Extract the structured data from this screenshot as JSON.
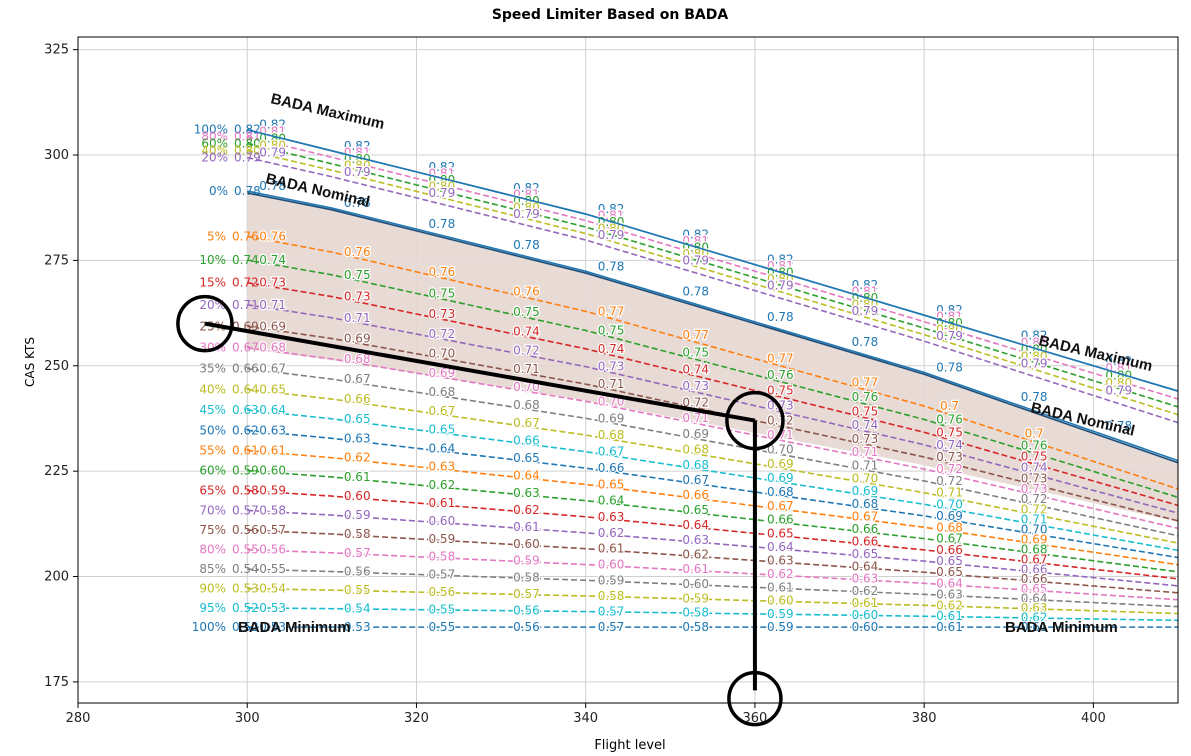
{
  "chart_data": {
    "type": "line",
    "title": "Speed Limiter Based on BADA",
    "xlabel": "Flight level",
    "ylabel": "CAS KTS",
    "xlim": [
      280,
      410
    ],
    "ylim": [
      170,
      328
    ],
    "xticks": [
      "280",
      "300",
      "320",
      "340",
      "360",
      "380",
      "400"
    ],
    "yticks": [
      "175",
      "200",
      "225",
      "250",
      "275",
      "300",
      "325"
    ],
    "xtick_values": [
      280,
      300,
      320,
      340,
      360,
      380,
      400
    ],
    "ytick_values": [
      175,
      200,
      225,
      250,
      275,
      300,
      325
    ],
    "grid": true,
    "x": [
      300,
      310,
      320,
      330,
      340,
      350,
      360,
      370,
      380,
      390,
      400,
      410
    ],
    "bada_maximum_cas": [
      306,
      301,
      296,
      291,
      286,
      280,
      274,
      268,
      262,
      256,
      250,
      244
    ],
    "bada_nominal_cas": [
      291,
      287,
      282,
      277,
      272,
      266,
      260,
      254,
      248,
      241,
      234,
      227
    ],
    "bada_minimum_cas": [
      188,
      188,
      188,
      188,
      188,
      188,
      188,
      188,
      188,
      188,
      188,
      188
    ],
    "series_upper": [
      {
        "name": "100%",
        "mach": "0.82",
        "marker_labels": [
          "0.82",
          "0.82",
          "0.82",
          "0.82",
          "0.82",
          "0.82",
          "0.82",
          "0.82",
          "0.82",
          "0.82",
          "0.82"
        ],
        "color": "#1f77b4",
        "dash": "solid"
      },
      {
        "name": "80%",
        "mach": "0.81",
        "marker_labels": [
          "0.81",
          "0.81",
          "0.81",
          "0.81",
          "0.81",
          "0.81",
          "0.81",
          "0.81",
          "0.81",
          "0.81",
          "0.81"
        ],
        "color": "#e377c2",
        "dash": "dashed"
      },
      {
        "name": "60%",
        "mach": "0.80",
        "marker_labels": [
          "0.80",
          "0.80",
          "0.80",
          "0.80",
          "0.80",
          "0.80",
          "0.80",
          "0.80",
          "0.80",
          "0.80",
          "0.80"
        ],
        "color": "#2ca02c",
        "dash": "dashed"
      },
      {
        "name": "40%",
        "mach": "0.80",
        "marker_labels": [
          "0.80",
          "0.80",
          "0.80",
          "0.80",
          "0.80",
          "0.80",
          "0.80",
          "0.80",
          "0.80",
          "0.80",
          "0.80"
        ],
        "color": "#bcbd22",
        "dash": "dashed"
      },
      {
        "name": "20%",
        "mach": "0.79",
        "marker_labels": [
          "0.79",
          "0.79",
          "0.79",
          "0.79",
          "0.79",
          "0.79",
          "0.79",
          "0.79",
          "0.79",
          "0.79",
          "0.79"
        ],
        "color": "#9467bd",
        "dash": "dashed"
      },
      {
        "name": "0%",
        "mach": "0.78",
        "marker_labels": [
          "0.78",
          "0.78",
          "0.78",
          "0.78",
          "0.78",
          "0.78",
          "0.78",
          "0.78",
          "0.78",
          "0.78",
          "0.78"
        ],
        "color": "#1f77b4",
        "dash": "solid"
      }
    ],
    "series_lower": [
      {
        "name": "5%",
        "mach": "0.76",
        "marker_labels": [
          "0.76",
          "0.76",
          "0.76",
          "0.76",
          "0.77",
          "0.77",
          "0.77",
          "0.77",
          "0.7",
          "0.7"
        ],
        "color": "#ff7f0e"
      },
      {
        "name": "10%",
        "mach": "0.74",
        "marker_labels": [
          "0.74",
          "0.75",
          "0.75",
          "0.75",
          "0.75",
          "0.75",
          "0.76",
          "0.76",
          "0.76",
          "0.76"
        ],
        "color": "#2ca02c"
      },
      {
        "name": "15%",
        "mach": "0.72",
        "marker_labels": [
          "0.73",
          "0.73",
          "0.73",
          "0.74",
          "0.74",
          "0.74",
          "0.75",
          "0.75",
          "0.75",
          "0.75"
        ],
        "color": "#d62728"
      },
      {
        "name": "20%",
        "mach": "0.71",
        "marker_labels": [
          "0.71",
          "0.71",
          "0.72",
          "0.72",
          "0.73",
          "0.73",
          "0.73",
          "0.74",
          "0.74",
          "0.74"
        ],
        "color": "#9467bd"
      },
      {
        "name": "25%",
        "mach": "0.69",
        "marker_labels": [
          "0.69",
          "0.69",
          "0.70",
          "0.71",
          "0.71",
          "0.72",
          "0.72",
          "0.73",
          "0.73",
          "0.73"
        ],
        "color": "#8c564b"
      },
      {
        "name": "30%",
        "mach": "0.67",
        "marker_labels": [
          "0.68",
          "0.68",
          "0.69",
          "0.70",
          "0.70",
          "0.71",
          "0.71",
          "0.71",
          "0.72",
          "0.73"
        ],
        "color": "#e377c2"
      },
      {
        "name": "35%",
        "mach": "0.66",
        "marker_labels": [
          "0.67",
          "0.67",
          "0.68",
          "0.68",
          "0.69",
          "0.69",
          "0.70",
          "0.71",
          "0.72",
          "0.72"
        ],
        "color": "#7f7f7f"
      },
      {
        "name": "40%",
        "mach": "0.64",
        "marker_labels": [
          "0.65",
          "0.66",
          "0.67",
          "0.67",
          "0.68",
          "0.68",
          "0.69",
          "0.70",
          "0.71",
          "0.72"
        ],
        "color": "#bcbd22"
      },
      {
        "name": "45%",
        "mach": "0.63",
        "marker_labels": [
          "0.64",
          "0.65",
          "0.65",
          "0.66",
          "0.67",
          "0.68",
          "0.69",
          "0.69",
          "0.70",
          "0.71"
        ],
        "color": "#17becf"
      },
      {
        "name": "50%",
        "mach": "0.62",
        "marker_labels": [
          "0.63",
          "0.63",
          "0.64",
          "0.65",
          "0.66",
          "0.67",
          "0.68",
          "0.68",
          "0.69",
          "0.70"
        ],
        "color": "#1f77b4"
      },
      {
        "name": "55%",
        "mach": "0.61",
        "marker_labels": [
          "0.61",
          "0.62",
          "0.63",
          "0.64",
          "0.65",
          "0.66",
          "0.67",
          "0.67",
          "0.68",
          "0.69"
        ],
        "color": "#ff7f0e"
      },
      {
        "name": "60%",
        "mach": "0.59",
        "marker_labels": [
          "0.60",
          "0.61",
          "0.62",
          "0.63",
          "0.64",
          "0.65",
          "0.66",
          "0.66",
          "0.67",
          "0.68"
        ],
        "color": "#2ca02c"
      },
      {
        "name": "65%",
        "mach": "0.58",
        "marker_labels": [
          "0.59",
          "0.60",
          "0.61",
          "0.62",
          "0.63",
          "0.64",
          "0.65",
          "0.66",
          "0.66",
          "0.67"
        ],
        "color": "#d62728"
      },
      {
        "name": "70%",
        "mach": "0.57",
        "marker_labels": [
          "0.58",
          "0.59",
          "0.60",
          "0.61",
          "0.62",
          "0.63",
          "0.64",
          "0.65",
          "0.65",
          "0.66"
        ],
        "color": "#9467bd"
      },
      {
        "name": "75%",
        "mach": "0.56",
        "marker_labels": [
          "0.57",
          "0.58",
          "0.59",
          "0.60",
          "0.61",
          "0.62",
          "0.63",
          "0.64",
          "0.65",
          "0.66"
        ],
        "color": "#8c564b"
      },
      {
        "name": "80%",
        "mach": "0.55",
        "marker_labels": [
          "0.56",
          "0.57",
          "0.58",
          "0.59",
          "0.60",
          "0.61",
          "0.62",
          "0.63",
          "0.64",
          "0.65"
        ],
        "color": "#e377c2"
      },
      {
        "name": "85%",
        "mach": "0.54",
        "marker_labels": [
          "0.55",
          "0.56",
          "0.57",
          "0.58",
          "0.59",
          "0.60",
          "0.61",
          "0.62",
          "0.63",
          "0.64"
        ],
        "color": "#7f7f7f"
      },
      {
        "name": "90%",
        "mach": "0.53",
        "marker_labels": [
          "0.54",
          "0.55",
          "0.56",
          "0.57",
          "0.58",
          "0.59",
          "0.60",
          "0.61",
          "0.62",
          "0.63"
        ],
        "color": "#bcbd22"
      },
      {
        "name": "95%",
        "mach": "0.52",
        "marker_labels": [
          "0.53",
          "0.54",
          "0.55",
          "0.56",
          "0.57",
          "0.58",
          "0.59",
          "0.60",
          "0.61",
          "0.62"
        ],
        "color": "#17becf"
      },
      {
        "name": "100%",
        "mach": "0.52",
        "marker_labels": [
          "0.53",
          "0.53",
          "0.55",
          "0.56",
          "0.57",
          "0.58",
          "0.59",
          "0.60",
          "0.61",
          "0.61"
        ],
        "color": "#1f77b4"
      }
    ],
    "annotations": {
      "bada_maximum": "BADA Maximum",
      "bada_nominal": "BADA Nominal",
      "bada_minimum": "BADA Minimum"
    },
    "highlights": {
      "flight_level": 360,
      "mach_at_point": "0.72",
      "cost_index_label": "25%",
      "point_cas": 237,
      "start_cas": 260
    }
  }
}
